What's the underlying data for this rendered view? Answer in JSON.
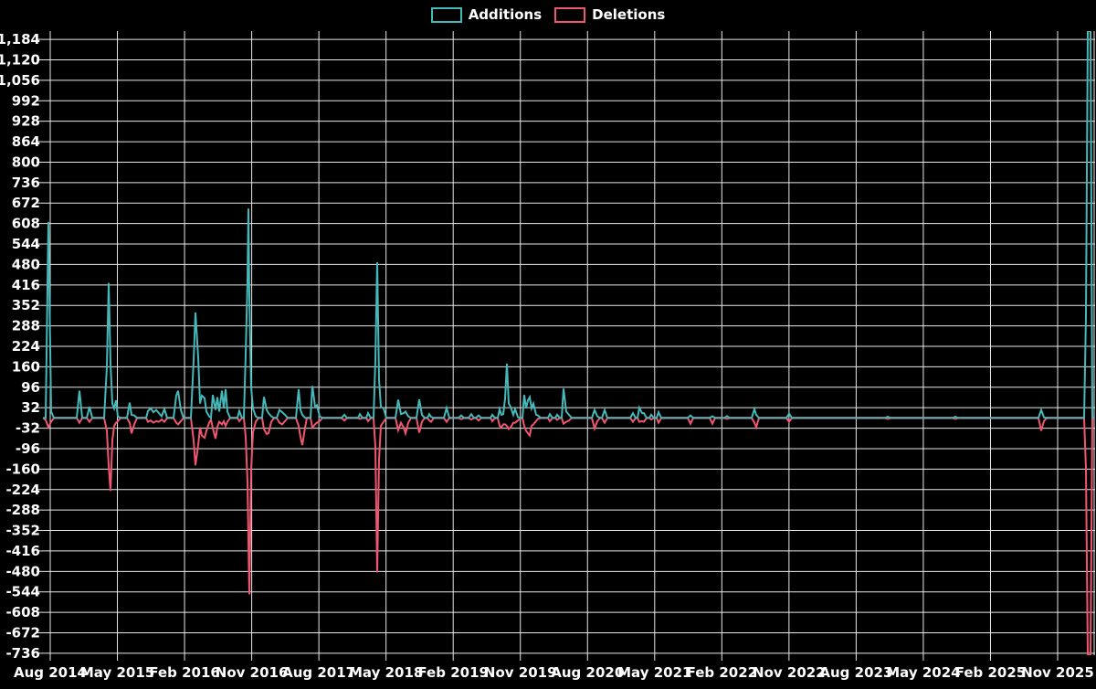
{
  "legend": {
    "items": [
      {
        "label": "Additions",
        "color": "#45b8ba"
      },
      {
        "label": "Deletions",
        "color": "#f0566f"
      }
    ]
  },
  "chart_data": {
    "type": "line",
    "title": "",
    "legend_position": "top-center",
    "grid": true,
    "background": "#000000",
    "grid_color": "#e8e8e8",
    "text_color": "#ffffff",
    "baseline_color": "#78a0aa",
    "x_tick_labels": [
      "Aug 2014",
      "May 2015",
      "Feb 2016",
      "Nov 2016",
      "Aug 2017",
      "May 2018",
      "Feb 2019",
      "Nov 2019",
      "Aug 2020",
      "May 2021",
      "Feb 2022",
      "Nov 2022",
      "Aug 2023",
      "May 2024",
      "Feb 2025",
      "Nov 2025"
    ],
    "y_tick_labels": [
      "1,184",
      "1,120",
      "1,056",
      "992",
      "928",
      "864",
      "800",
      "736",
      "672",
      "608",
      "544",
      "480",
      "416",
      "352",
      "288",
      "224",
      "160",
      "96",
      "32",
      "-32",
      "-96",
      "-160",
      "-224",
      "-288",
      "-352",
      "-416",
      "-480",
      "-544",
      "-608",
      "-672",
      "-736"
    ],
    "y_tick_values": [
      1184,
      1120,
      1056,
      992,
      928,
      864,
      800,
      736,
      672,
      608,
      544,
      480,
      416,
      352,
      288,
      224,
      160,
      96,
      32,
      -32,
      -96,
      -160,
      -224,
      -288,
      -352,
      -416,
      -480,
      -544,
      -608,
      -672,
      -736
    ],
    "y_domain": [
      -742,
      1210
    ],
    "series": [
      {
        "name": "Additions",
        "color": "#45b8ba",
        "column": 1
      },
      {
        "name": "Deletions",
        "color": "#f0566f",
        "column": 2
      }
    ],
    "samples_columns": [
      "x_px",
      "additions",
      "deletions"
    ],
    "samples": [
      [
        47,
        0,
        0
      ],
      [
        50,
        0,
        -6
      ],
      [
        53,
        613,
        -29
      ],
      [
        56,
        20,
        -12
      ],
      [
        59,
        0,
        0
      ],
      [
        84,
        0,
        0
      ],
      [
        87,
        85,
        -15
      ],
      [
        90,
        0,
        0
      ],
      [
        95,
        0,
        0
      ],
      [
        98,
        35,
        -12
      ],
      [
        101,
        0,
        0
      ],
      [
        114,
        0,
        0
      ],
      [
        117,
        160,
        -40
      ],
      [
        119,
        422,
        -150
      ],
      [
        121,
        170,
        -228
      ],
      [
        123,
        45,
        -70
      ],
      [
        125,
        30,
        -25
      ],
      [
        127,
        55,
        -15
      ],
      [
        129,
        5,
        -10
      ],
      [
        132,
        0,
        0
      ],
      [
        139,
        0,
        0
      ],
      [
        142,
        48,
        -15
      ],
      [
        144,
        10,
        -48
      ],
      [
        147,
        8,
        -20
      ],
      [
        150,
        0,
        0
      ],
      [
        160,
        0,
        0
      ],
      [
        162,
        22,
        -12
      ],
      [
        165,
        30,
        -8
      ],
      [
        168,
        18,
        -15
      ],
      [
        171,
        25,
        -10
      ],
      [
        174,
        15,
        -12
      ],
      [
        177,
        5,
        -5
      ],
      [
        180,
        28,
        -12
      ],
      [
        183,
        0,
        0
      ],
      [
        190,
        0,
        0
      ],
      [
        193,
        70,
        -15
      ],
      [
        195,
        85,
        -20
      ],
      [
        198,
        25,
        -10
      ],
      [
        201,
        0,
        0
      ],
      [
        209,
        0,
        0
      ],
      [
        212,
        180,
        -70
      ],
      [
        214,
        330,
        -148
      ],
      [
        217,
        190,
        -85
      ],
      [
        219,
        45,
        -30
      ],
      [
        221,
        70,
        -55
      ],
      [
        224,
        62,
        -62
      ],
      [
        226,
        20,
        -40
      ],
      [
        229,
        5,
        -15
      ],
      [
        231,
        0,
        -5
      ],
      [
        233,
        72,
        -32
      ],
      [
        236,
        25,
        -65
      ],
      [
        238,
        65,
        -28
      ],
      [
        240,
        20,
        -12
      ],
      [
        243,
        85,
        -20
      ],
      [
        245,
        30,
        -10
      ],
      [
        247,
        90,
        -25
      ],
      [
        249,
        20,
        -12
      ],
      [
        252,
        0,
        0
      ],
      [
        260,
        0,
        0
      ],
      [
        262,
        22,
        -10
      ],
      [
        265,
        0,
        0
      ],
      [
        267,
        0,
        0
      ],
      [
        269,
        200,
        -60
      ],
      [
        271,
        430,
        -200
      ],
      [
        272,
        655,
        -380
      ],
      [
        273,
        380,
        -552
      ],
      [
        275,
        95,
        -160
      ],
      [
        277,
        30,
        -45
      ],
      [
        280,
        5,
        -12
      ],
      [
        283,
        0,
        0
      ],
      [
        287,
        0,
        0
      ],
      [
        289,
        66,
        -35
      ],
      [
        292,
        25,
        -50
      ],
      [
        294,
        15,
        -48
      ],
      [
        297,
        5,
        -12
      ],
      [
        300,
        0,
        0
      ],
      [
        303,
        0,
        0
      ],
      [
        306,
        25,
        -15
      ],
      [
        309,
        18,
        -20
      ],
      [
        312,
        10,
        -10
      ],
      [
        315,
        0,
        0
      ],
      [
        324,
        0,
        0
      ],
      [
        327,
        90,
        -25
      ],
      [
        329,
        25,
        -60
      ],
      [
        331,
        10,
        -85
      ],
      [
        334,
        0,
        -30
      ],
      [
        336,
        0,
        0
      ],
      [
        340,
        0,
        0
      ],
      [
        342,
        100,
        -30
      ],
      [
        345,
        35,
        -20
      ],
      [
        347,
        40,
        -15
      ],
      [
        350,
        5,
        -10
      ],
      [
        353,
        0,
        0
      ],
      [
        374,
        0,
        0
      ],
      [
        377,
        10,
        -8
      ],
      [
        380,
        0,
        0
      ],
      [
        392,
        0,
        0
      ],
      [
        394,
        12,
        -3
      ],
      [
        397,
        0,
        0
      ],
      [
        401,
        0,
        0
      ],
      [
        403,
        15,
        -10
      ],
      [
        406,
        0,
        0
      ],
      [
        409,
        0,
        0
      ],
      [
        411,
        180,
        -90
      ],
      [
        413,
        487,
        -483
      ],
      [
        415,
        120,
        -130
      ],
      [
        417,
        35,
        -25
      ],
      [
        420,
        30,
        -12
      ],
      [
        423,
        0,
        0
      ],
      [
        433,
        0,
        0
      ],
      [
        436,
        57,
        -38
      ],
      [
        439,
        12,
        -15
      ],
      [
        442,
        15,
        -30
      ],
      [
        444,
        20,
        -48
      ],
      [
        447,
        5,
        -15
      ],
      [
        450,
        0,
        0
      ],
      [
        456,
        0,
        0
      ],
      [
        459,
        58,
        -46
      ],
      [
        462,
        10,
        -12
      ],
      [
        465,
        0,
        0
      ],
      [
        468,
        0,
        0
      ],
      [
        470,
        12,
        -8
      ],
      [
        472,
        3,
        -12
      ],
      [
        475,
        0,
        0
      ],
      [
        486,
        0,
        0
      ],
      [
        489,
        31,
        -12
      ],
      [
        492,
        0,
        0
      ],
      [
        502,
        0,
        0
      ],
      [
        505,
        8,
        -4
      ],
      [
        508,
        0,
        0
      ],
      [
        513,
        0,
        0
      ],
      [
        516,
        12,
        -5
      ],
      [
        519,
        0,
        0
      ],
      [
        521,
        0,
        0
      ],
      [
        524,
        8,
        -8
      ],
      [
        527,
        0,
        0
      ],
      [
        537,
        0,
        0
      ],
      [
        539,
        10,
        -10
      ],
      [
        542,
        0,
        0
      ],
      [
        545,
        0,
        0
      ],
      [
        547,
        27,
        -25
      ],
      [
        549,
        10,
        -30
      ],
      [
        551,
        12,
        -20
      ],
      [
        553,
        60,
        -20
      ],
      [
        555,
        170,
        -25
      ],
      [
        557,
        45,
        -35
      ],
      [
        559,
        35,
        -30
      ],
      [
        562,
        10,
        -15
      ],
      [
        564,
        28,
        -15
      ],
      [
        567,
        3,
        -8
      ],
      [
        570,
        0,
        0
      ],
      [
        572,
        0,
        0
      ],
      [
        574,
        72,
        -25
      ],
      [
        576,
        30,
        -40
      ],
      [
        578,
        55,
        -48
      ],
      [
        580,
        65,
        -55
      ],
      [
        582,
        30,
        -25
      ],
      [
        584,
        45,
        -20
      ],
      [
        587,
        10,
        -10
      ],
      [
        589,
        8,
        -3
      ],
      [
        592,
        0,
        0
      ],
      [
        600,
        0,
        0
      ],
      [
        602,
        12,
        -10
      ],
      [
        605,
        0,
        0
      ],
      [
        608,
        0,
        0
      ],
      [
        610,
        10,
        -6
      ],
      [
        613,
        0,
        0
      ],
      [
        615,
        0,
        0
      ],
      [
        617,
        92,
        -18
      ],
      [
        620,
        20,
        -12
      ],
      [
        623,
        10,
        -8
      ],
      [
        626,
        0,
        0
      ],
      [
        648,
        0,
        0
      ],
      [
        651,
        25,
        -33
      ],
      [
        654,
        5,
        -10
      ],
      [
        657,
        0,
        0
      ],
      [
        659,
        0,
        0
      ],
      [
        662,
        25,
        -15
      ],
      [
        665,
        0,
        0
      ],
      [
        690,
        0,
        0
      ],
      [
        693,
        15,
        -12
      ],
      [
        696,
        0,
        0
      ],
      [
        698,
        0,
        0
      ],
      [
        700,
        32,
        -12
      ],
      [
        703,
        15,
        -10
      ],
      [
        705,
        15,
        -12
      ],
      [
        708,
        0,
        0
      ],
      [
        711,
        0,
        0
      ],
      [
        713,
        10,
        -5
      ],
      [
        716,
        0,
        0
      ],
      [
        719,
        0,
        0
      ],
      [
        721,
        18,
        -15
      ],
      [
        724,
        0,
        0
      ],
      [
        753,
        0,
        0
      ],
      [
        756,
        8,
        -18
      ],
      [
        759,
        0,
        0
      ],
      [
        777,
        0,
        0
      ],
      [
        780,
        5,
        -18
      ],
      [
        783,
        0,
        0
      ],
      [
        793,
        0,
        0
      ],
      [
        796,
        6,
        -3
      ],
      [
        799,
        0,
        0
      ],
      [
        823,
        0,
        0
      ],
      [
        826,
        28,
        -15
      ],
      [
        828,
        10,
        -29
      ],
      [
        831,
        0,
        0
      ],
      [
        861,
        0,
        0
      ],
      [
        864,
        14,
        -12
      ],
      [
        867,
        0,
        0
      ],
      [
        969,
        0,
        0
      ],
      [
        972,
        4,
        -3
      ],
      [
        975,
        0,
        0
      ],
      [
        1043,
        0,
        0
      ],
      [
        1046,
        4,
        -3
      ],
      [
        1049,
        0,
        0
      ],
      [
        1137,
        0,
        0
      ],
      [
        1140,
        25,
        -40
      ],
      [
        1143,
        2,
        -10
      ],
      [
        1146,
        0,
        0
      ],
      [
        1187,
        0,
        0
      ],
      [
        1189,
        320,
        -160
      ],
      [
        1191,
        1210,
        -742
      ],
      [
        1194,
        1210,
        -742
      ],
      [
        1196,
        0,
        0
      ],
      [
        1198,
        0,
        0
      ]
    ]
  }
}
